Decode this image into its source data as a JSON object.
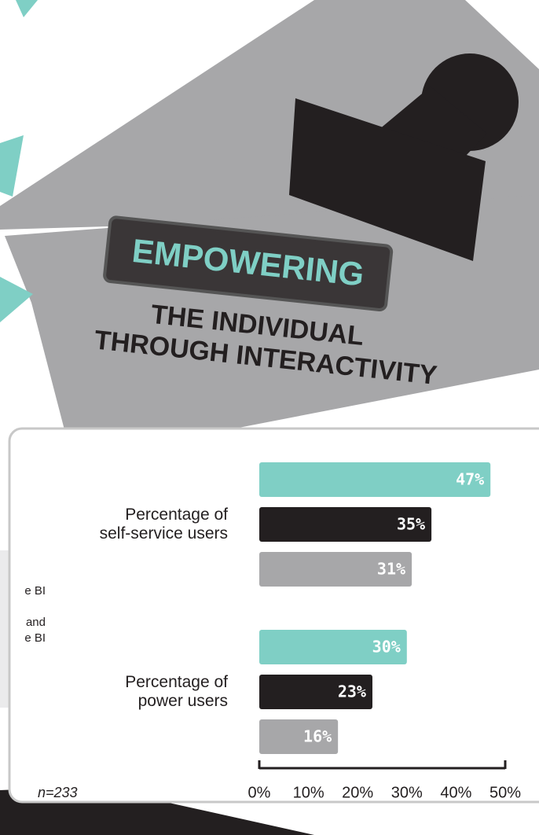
{
  "banner": {
    "stamp": "EMPOWERING",
    "line1": "THE INDIVIDUAL",
    "line2": "THROUGH INTERACTIVITY"
  },
  "side_panel": {
    "lines": [
      "e BI",
      "and",
      "e BI"
    ]
  },
  "chart_data": {
    "type": "bar",
    "orientation": "horizontal",
    "categories": [
      "Percentage of\nself-service users",
      "Percentage of\npower users"
    ],
    "series": [
      {
        "color": "#7fcfc5",
        "values": [
          47,
          30
        ],
        "value_labels": [
          "47%",
          "30%"
        ]
      },
      {
        "color": "#231f20",
        "values": [
          35,
          23
        ],
        "value_labels": [
          "35%",
          "23%"
        ]
      },
      {
        "color": "#a7a7a9",
        "values": [
          31,
          16
        ],
        "value_labels": [
          "31%",
          "16%"
        ]
      }
    ],
    "xlim": [
      0,
      50
    ],
    "xticks": [
      {
        "value": 0,
        "label": "0%"
      },
      {
        "value": 10,
        "label": "10%"
      },
      {
        "value": 20,
        "label": "20%"
      },
      {
        "value": 30,
        "label": "30%"
      },
      {
        "value": 40,
        "label": "40%"
      },
      {
        "value": 50,
        "label": "50%"
      }
    ],
    "note": "n=233"
  }
}
